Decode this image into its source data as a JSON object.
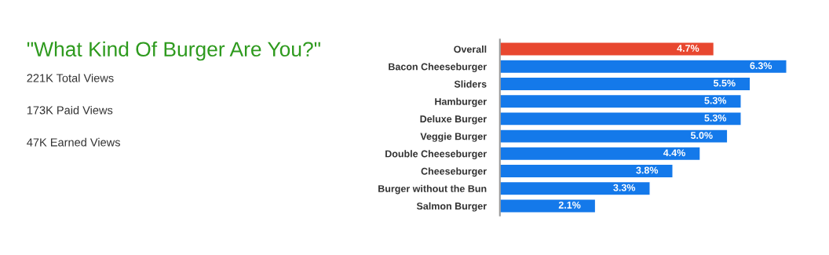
{
  "chart_data": {
    "type": "bar",
    "orientation": "horizontal",
    "title": "\"What Kind Of Burger Are You?\"",
    "annotations": [
      "221K Total Views",
      "173K Paid Views",
      "47K Earned Views"
    ],
    "categories": [
      "Overall",
      "Bacon Cheeseburger",
      "Sliders",
      "Hamburger",
      "Deluxe Burger",
      "Veggie Burger",
      "Double Cheeseburger",
      "Cheeseburger",
      "Burger without the Bun",
      "Salmon Burger"
    ],
    "values": [
      4.7,
      6.3,
      5.5,
      5.3,
      5.3,
      5.0,
      4.4,
      3.8,
      3.3,
      2.1
    ],
    "value_labels": [
      "4.7%",
      "6.3%",
      "5.5%",
      "5.3%",
      "5.3%",
      "5.0%",
      "4.4%",
      "3.8%",
      "3.3%",
      "2.1%"
    ],
    "colors": [
      "#e8472f",
      "#1479ea",
      "#1479ea",
      "#1479ea",
      "#1479ea",
      "#1479ea",
      "#1479ea",
      "#1479ea",
      "#1479ea",
      "#1479ea"
    ],
    "tick_labels": "y"
  }
}
